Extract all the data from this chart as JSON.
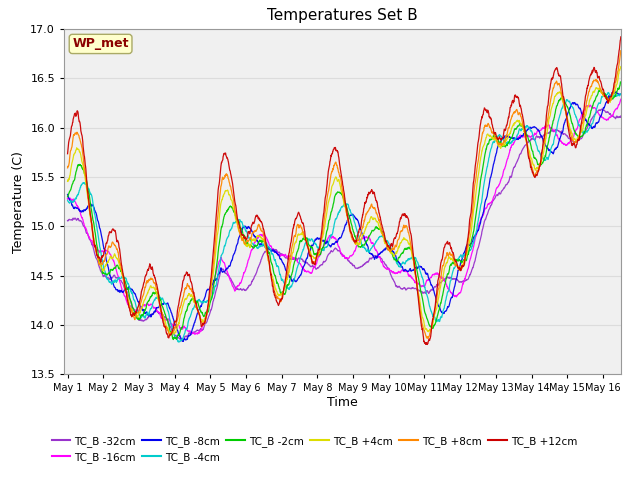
{
  "title": "Temperatures Set B",
  "xlabel": "Time",
  "ylabel": "Temperature (C)",
  "ylim": [
    13.5,
    17.0
  ],
  "xlim_days": [
    -0.1,
    15.5
  ],
  "annotation": "WP_met",
  "annotation_color": "#8B0000",
  "annotation_bg": "#FFFFCC",
  "series": [
    {
      "label": "TC_B -32cm",
      "color": "#9933CC"
    },
    {
      "label": "TC_B -16cm",
      "color": "#FF00FF"
    },
    {
      "label": "TC_B -8cm",
      "color": "#0000EE"
    },
    {
      "label": "TC_B -4cm",
      "color": "#00CCCC"
    },
    {
      "label": "TC_B -2cm",
      "color": "#00CC00"
    },
    {
      "label": "TC_B +4cm",
      "color": "#DDDD00"
    },
    {
      "label": "TC_B +8cm",
      "color": "#FF8800"
    },
    {
      "label": "TC_B +12cm",
      "color": "#CC0000"
    }
  ],
  "yticks": [
    13.5,
    14.0,
    14.5,
    15.0,
    15.5,
    16.0,
    16.5,
    17.0
  ],
  "xtick_labels": [
    "May 1",
    "May 2",
    "May 3",
    "May 4",
    "May 5",
    "May 6",
    "May 7",
    "May 8",
    "May 9",
    "May 10",
    "May 11",
    "May 12",
    "May 13",
    "May 14",
    "May 15",
    "May 16"
  ],
  "grid_color": "#DCDCDC",
  "bg_color": "#E8E8E8",
  "plot_bg": "#F0F0F0"
}
